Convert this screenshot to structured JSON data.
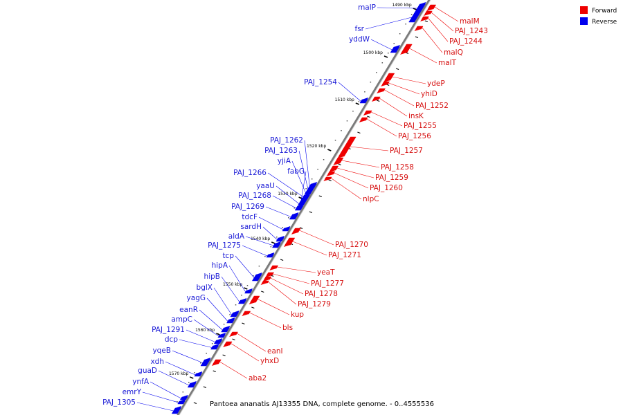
{
  "caption": "Pantoea ananatis AJ13355 DNA, complete genome. - 0..4555536",
  "legend": [
    {
      "label": "Forward",
      "color": "#ee0000"
    },
    {
      "label": "Reverse",
      "color": "#0000ee"
    }
  ],
  "colors": {
    "forward": "#ee0000",
    "reverse": "#0000ee",
    "backbone": "#777777"
  },
  "ticks": [
    "1490 kbp",
    "1500 kbp",
    "1510 kbp",
    "1520 kbp",
    "1530 kbp",
    "1540 kbp",
    "1550 kbp",
    "1560 kbp",
    "1570 kbp"
  ],
  "reverse_genes": [
    "malP",
    "fsr",
    "yddW",
    "PAJ_1254",
    "PAJ_1262",
    "PAJ_1263",
    "yjiA",
    "PAJ_1266",
    "fabG",
    "yaaU",
    "PAJ_1268",
    "PAJ_1269",
    "tdcF",
    "sardH",
    "aldA",
    "PAJ_1275",
    "tcp",
    "hipA",
    "hipB",
    "bglX",
    "yagG",
    "eanR",
    "ampC",
    "PAJ_1291",
    "dcp",
    "yqeB",
    "xdh",
    "guaD",
    "ynfA",
    "emrY",
    "PAJ_1305"
  ],
  "forward_genes": [
    "malM",
    "PAJ_1243",
    "PAJ_1244",
    "malQ",
    "malT",
    "ydeP",
    "yhiD",
    "PAJ_1252",
    "insK",
    "PAJ_1255",
    "PAJ_1256",
    "PAJ_1257",
    "PAJ_1258",
    "PAJ_1259",
    "PAJ_1260",
    "nlpC",
    "PAJ_1270",
    "PAJ_1271",
    "yeaT",
    "PAJ_1277",
    "PAJ_1278",
    "PAJ_1279",
    "kup",
    "bls",
    "eanI",
    "yhxD",
    "aba2"
  ]
}
